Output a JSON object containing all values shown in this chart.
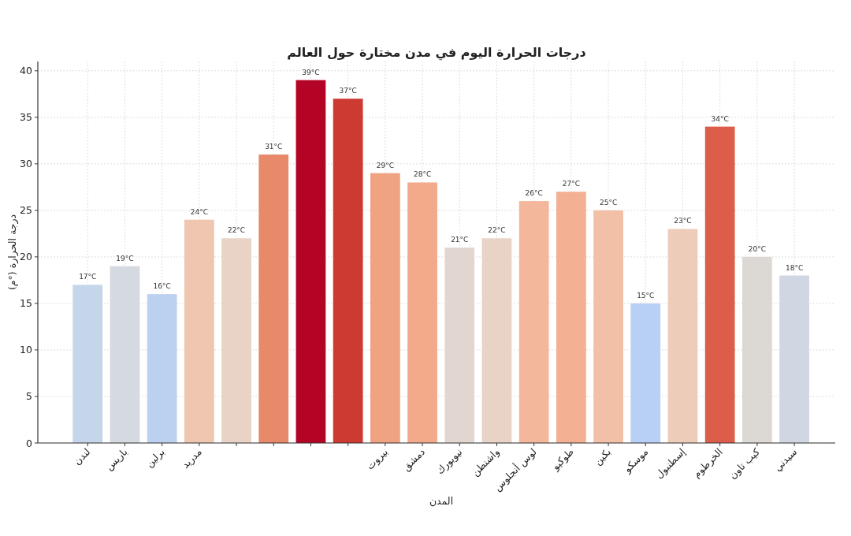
{
  "chart_data": {
    "type": "bar",
    "title": "درجات الحرارة اليوم في مدن مختارة حول العالم",
    "xlabel": "المدن",
    "ylabel": "درجة الحرارة (°م)",
    "categories": [
      "لندن",
      "باريس",
      "برلين",
      "مدريد",
      null,
      null,
      null,
      null,
      "بيروت",
      "دمشق",
      "نيويورك",
      "واشنطن",
      "لوس أنجلوس",
      "طوكيو",
      "بكين",
      "موسكو",
      "إسطنبول",
      "الخرطوم",
      "كيب تاون",
      "سيدني"
    ],
    "values": [
      17,
      19,
      16,
      24,
      22,
      31,
      39,
      37,
      29,
      28,
      21,
      22,
      26,
      27,
      25,
      15,
      23,
      34,
      20,
      18
    ],
    "value_labels": [
      "17°C",
      "19°C",
      "16°C",
      "24°C",
      "22°C",
      "31°C",
      "39°C",
      "37°C",
      "29°C",
      "28°C",
      "21°C",
      "22°C",
      "26°C",
      "27°C",
      "25°C",
      "15°C",
      "23°C",
      "34°C",
      "20°C",
      "18°C"
    ],
    "colors": [
      "#c5d5ea",
      "#d5d9e0",
      "#bcd0f0",
      "#efc7b0",
      "#e8d3c6",
      "#e8896a",
      "#b40426",
      "#cc3a32",
      "#f0a383",
      "#f2aa8a",
      "#e2d7d0",
      "#e8d3c6",
      "#f3b89c",
      "#f3b093",
      "#f2c0a6",
      "#b8cff6",
      "#edcdb9",
      "#dc5d4a",
      "#dcd9d5",
      "#d0d6e2"
    ],
    "ylim": [
      0,
      41
    ],
    "yticks": [
      0,
      5,
      10,
      15,
      20,
      25,
      30,
      35,
      40
    ],
    "grid": true
  }
}
